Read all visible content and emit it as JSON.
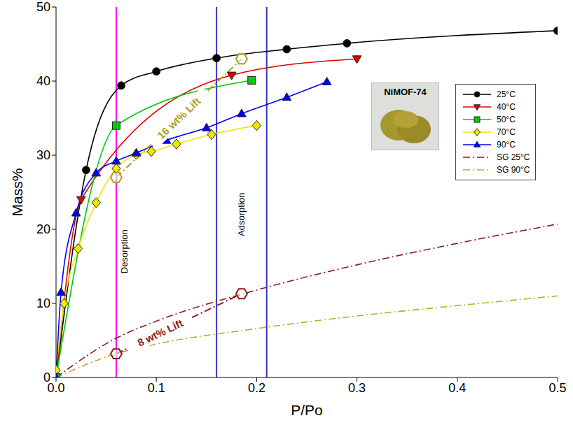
{
  "chart_data": {
    "type": "line",
    "x_label": "P/Po",
    "y_label": "Mass%",
    "xlim": [
      0,
      0.5
    ],
    "ylim": [
      0,
      50
    ],
    "xticks": [
      {
        "value": 0,
        "label": "0.0"
      },
      0.1,
      0.2,
      0.3,
      0.4,
      0.5
    ],
    "yticks": [
      0,
      10,
      20,
      30,
      40,
      50
    ],
    "grid": false,
    "legend": "right",
    "inset_label": "NiMOF-74",
    "series": [
      {
        "name": "25°C",
        "color": "#000000",
        "marker": "circle",
        "line_style": "solid",
        "x": [
          0,
          0.03,
          0.065,
          0.1,
          0.16,
          0.23,
          0.29,
          0.5
        ],
        "values": [
          0,
          28,
          39.4,
          41.3,
          43.1,
          44.3,
          45.1,
          46.8
        ]
      },
      {
        "name": "40°C",
        "color": "#e00000",
        "marker": "triangle-down",
        "line_style": "solid",
        "x": [
          0,
          0.025,
          0.175,
          0.3
        ],
        "values": [
          0,
          24,
          40.8,
          43
        ]
      },
      {
        "name": "50°C",
        "color": "#00cc00",
        "marker": "square",
        "line_style": "solid",
        "x": [
          0,
          0.06,
          0.195
        ],
        "values": [
          0,
          34,
          40.1
        ]
      },
      {
        "name": "70°C",
        "color": "#f2e600",
        "marker": "diamond",
        "line_style": "solid",
        "x": [
          0,
          0.008,
          0.022,
          0.04,
          0.06,
          0.08,
          0.095,
          0.12,
          0.155,
          0.2
        ],
        "values": [
          1,
          10,
          17.4,
          23.6,
          28.2,
          30.1,
          30.5,
          31.5,
          32.8,
          34
        ]
      },
      {
        "name": "90°C",
        "color": "#0000ff",
        "marker": "triangle",
        "line_style": "solid",
        "x": [
          0,
          0.005,
          0.02,
          0.04,
          0.06,
          0.08,
          0.11,
          0.15,
          0.185,
          0.23,
          0.27
        ],
        "values": [
          0,
          11.5,
          22.2,
          27.6,
          29.2,
          30.3,
          32,
          33.7,
          35.6,
          37.8,
          39.9
        ]
      },
      {
        "name": "SG 25°C",
        "color": "#8b1a1a",
        "marker": "none",
        "line_style": "dashdot",
        "x": [
          0,
          0.06,
          0.1,
          0.2,
          0.3,
          0.4,
          0.5
        ],
        "values": [
          0,
          5.3,
          7.6,
          11.8,
          15.2,
          18.1,
          20.7
        ]
      },
      {
        "name": "SG 90°C",
        "color": "#b0b030",
        "marker": "none",
        "line_style": "dashdot",
        "x": [
          0,
          0.06,
          0.1,
          0.2,
          0.3,
          0.4,
          0.5
        ],
        "values": [
          0,
          3.2,
          4.5,
          6.6,
          8.3,
          9.7,
          11
        ]
      }
    ],
    "windows": [
      {
        "label": "Desorption",
        "color": "#ff00ff",
        "x": [
          0.06
        ]
      },
      {
        "label": "Adsorption",
        "color": "#3535c8",
        "x": [
          0.16,
          0.21
        ]
      }
    ],
    "lifts": [
      {
        "label": "16 wt% Lift",
        "color": "#a8a020",
        "marker": "hexagon",
        "line_style": "dashdot",
        "x": [
          0.06,
          0.185
        ],
        "values": [
          27,
          43
        ]
      },
      {
        "label": "8 wt% Lift",
        "color": "#8b1a1a",
        "marker": "hexagon",
        "line_style": "dashdot",
        "x": [
          0.06,
          0.185
        ],
        "values": [
          3.2,
          11.3
        ]
      }
    ]
  }
}
